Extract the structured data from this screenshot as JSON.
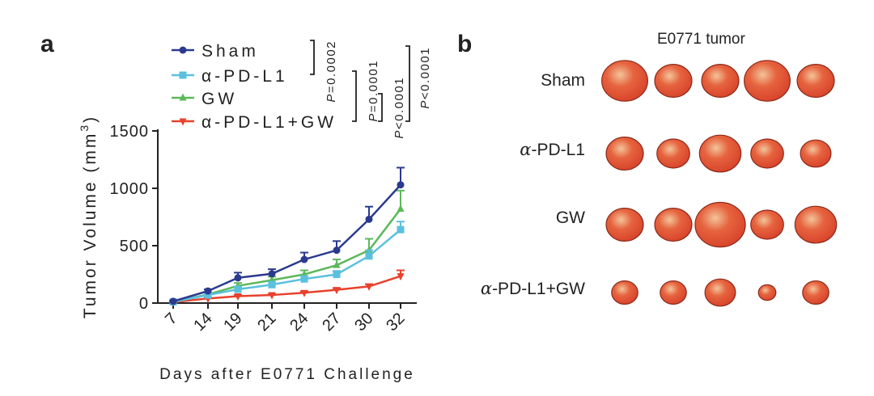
{
  "panels": {
    "a": "a",
    "b": "b"
  },
  "chart_data": {
    "type": "line",
    "title": "",
    "xlabel": "Days after E0771 Challenge",
    "ylabel": "Tumor Volume (mm3)",
    "ylabel_main": "Tumor Volume (mm",
    "ylabel_sup": "3",
    "ylabel_end": ")",
    "categories": [
      "7",
      "14",
      "19",
      "21",
      "24",
      "27",
      "30",
      "32"
    ],
    "ylim": [
      0,
      1500
    ],
    "yticks": [
      "0",
      "500",
      "1000",
      "1500"
    ],
    "ytick_values": [
      0,
      500,
      1000,
      1500
    ],
    "legend_position": "top-left",
    "series": [
      {
        "name": "Sham",
        "color": "#2b3a8f",
        "marker": "circle",
        "values": [
          15,
          105,
          220,
          255,
          380,
          460,
          730,
          1030
        ],
        "errors": [
          5,
          15,
          45,
          40,
          60,
          80,
          110,
          150
        ]
      },
      {
        "name": "α-PD-L1",
        "color": "#5bc0de",
        "marker": "square",
        "values": [
          10,
          70,
          120,
          160,
          210,
          250,
          410,
          640
        ],
        "errors": [
          5,
          10,
          20,
          25,
          25,
          30,
          50,
          70
        ]
      },
      {
        "name": "GW",
        "color": "#5cb85c",
        "marker": "triangle-up",
        "values": [
          12,
          75,
          150,
          200,
          250,
          330,
          460,
          820
        ],
        "errors": [
          5,
          12,
          25,
          30,
          35,
          50,
          100,
          160
        ]
      },
      {
        "name": "α-PD-L1+GW",
        "color": "#e8412c",
        "marker": "triangle-down",
        "values": [
          8,
          40,
          60,
          70,
          90,
          115,
          145,
          235
        ],
        "errors": [
          3,
          8,
          10,
          10,
          12,
          15,
          20,
          50
        ]
      }
    ],
    "annotations": [
      "P=0.0002",
      "P=0.0001",
      "P<0.0001",
      "P<0.0001"
    ]
  },
  "photos": {
    "title": "E0771 tumor",
    "rows": [
      {
        "label_prefix": "",
        "label_greek": "",
        "label_rest": "Sham",
        "tumors": [
          1.05,
          0.85,
          0.85,
          1.05,
          0.85
        ]
      },
      {
        "label_prefix": "",
        "label_greek": "α",
        "label_rest": "-PD-L1",
        "tumors": [
          0.85,
          0.75,
          0.95,
          0.75,
          0.7
        ]
      },
      {
        "label_prefix": "",
        "label_greek": "",
        "label_rest": "GW",
        "tumors": [
          0.85,
          0.85,
          1.15,
          0.75,
          0.95
        ]
      },
      {
        "label_prefix": "",
        "label_greek": "α",
        "label_rest": "-PD-L1+GW",
        "tumors": [
          0.6,
          0.6,
          0.7,
          0.4,
          0.6
        ]
      }
    ],
    "tumor_color": "#d9452c",
    "tumor_highlight": "#f3c49a"
  }
}
